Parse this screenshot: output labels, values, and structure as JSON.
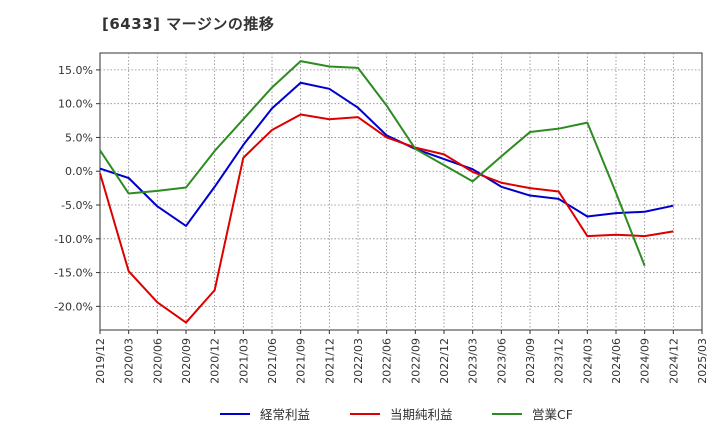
{
  "title": "[6433]  マージンの推移",
  "chart_data": {
    "type": "line",
    "x": [
      "2019/12",
      "2020/03",
      "2020/06",
      "2020/09",
      "2020/12",
      "2021/03",
      "2021/06",
      "2021/09",
      "2021/12",
      "2022/03",
      "2022/06",
      "2022/09",
      "2022/12",
      "2023/03",
      "2023/06",
      "2023/09",
      "2023/12",
      "2024/03",
      "2024/06",
      "2024/09",
      "2024/12",
      "2025/03"
    ],
    "ylim": [
      -23.5,
      17.5
    ],
    "y_ticks": [
      -20,
      -15,
      -10,
      -5,
      0,
      5,
      10,
      15
    ],
    "y_tick_labels": [
      "-20.0%",
      "-15.0%",
      "-10.0%",
      "-5.0%",
      "0.0%",
      "5.0%",
      "10.0%",
      "15.0%"
    ],
    "grid": true,
    "legend_position": "bottom",
    "series": [
      {
        "name": "経常利益",
        "color": "#0000cc",
        "values": [
          0.4,
          -1.0,
          -5.2,
          -8.1,
          -2.3,
          3.9,
          9.3,
          13.1,
          12.2,
          9.4,
          5.3,
          3.3,
          1.8,
          0.3,
          -2.3,
          -3.6,
          -4.1,
          -6.7,
          -6.2,
          -6.0,
          -5.1,
          null
        ]
      },
      {
        "name": "当期純利益",
        "color": "#dd0000",
        "values": [
          -0.3,
          -14.8,
          -19.4,
          -22.4,
          -17.6,
          2.0,
          6.1,
          8.4,
          7.7,
          8.0,
          5.0,
          3.5,
          2.5,
          -0.1,
          -1.7,
          -2.5,
          -3.0,
          -9.6,
          -9.4,
          -9.6,
          -8.9,
          null
        ]
      },
      {
        "name": "営業CF",
        "color": "#2e8b22",
        "values": [
          3.1,
          -3.3,
          -2.9,
          -2.4,
          3.0,
          7.7,
          12.4,
          16.3,
          15.5,
          15.3,
          9.7,
          3.3,
          0.9,
          -1.5,
          2.2,
          5.8,
          6.3,
          7.2,
          -3.2,
          -14.0,
          null,
          null
        ]
      }
    ]
  }
}
